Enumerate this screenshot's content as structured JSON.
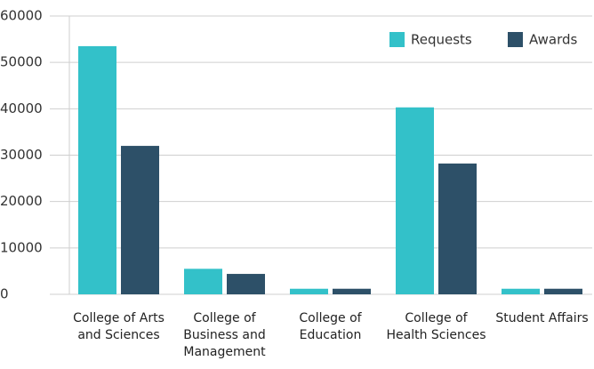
{
  "chart_data": {
    "type": "bar",
    "categories": [
      "College of Arts and Sciences",
      "College of Business and Management",
      "College of Education",
      "College of Health Sciences",
      "Student Affairs"
    ],
    "series": [
      {
        "name": "Requests",
        "color": "#33c1c9",
        "values": [
          53500,
          5500,
          1200,
          40300,
          1200
        ]
      },
      {
        "name": "Awards",
        "color": "#2d5068",
        "values": [
          32000,
          4400,
          1200,
          28200,
          1200
        ]
      }
    ],
    "ylim": [
      0,
      60000
    ],
    "yticks": [
      0,
      10000,
      20000,
      30000,
      40000,
      50000,
      60000
    ],
    "grid": true,
    "legend": "top-right"
  }
}
